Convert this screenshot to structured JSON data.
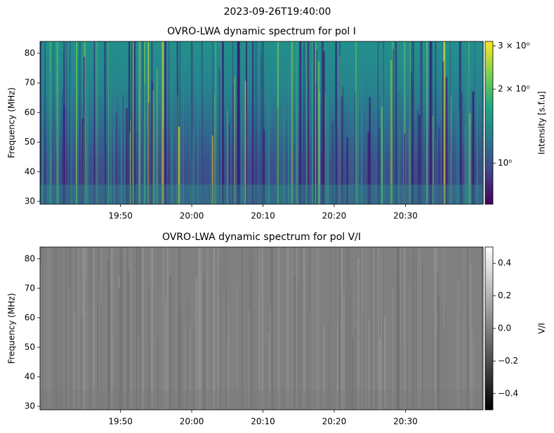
{
  "title": "2023-09-26T19:40:00",
  "chart_data": [
    {
      "type": "heatmap",
      "title": "OVRO-LWA dynamic spectrum for pol I",
      "y_label": "Frequency (MHz)",
      "xlim": [
        1178.7,
        1240.9
      ],
      "xticks": [
        {
          "value": 1190,
          "label": "19:50"
        },
        {
          "value": 1200,
          "label": "20:00"
        },
        {
          "value": 1210,
          "label": "20:10"
        },
        {
          "value": 1220,
          "label": "20:20"
        },
        {
          "value": 1230,
          "label": "20:30"
        }
      ],
      "ylim": [
        29.05,
        84
      ],
      "yticks": [
        30,
        40,
        50,
        60,
        70,
        80
      ],
      "colormap": "viridis",
      "colorbar": {
        "label": "Intensity [s.f.u]",
        "log": true,
        "lim": [
          0.68,
          3.13
        ],
        "ticks": [
          {
            "value": 1,
            "label": "10⁰"
          },
          {
            "value": 2,
            "label": "2 × 10⁰"
          },
          {
            "value": 3,
            "label": "3 × 10⁰"
          }
        ]
      }
    },
    {
      "type": "heatmap",
      "title": "OVRO-LWA dynamic spectrum for pol V/I",
      "y_label": "Frequency (MHz)",
      "xlim": [
        1178.7,
        1240.9
      ],
      "xticks": [
        {
          "value": 1190,
          "label": "19:50"
        },
        {
          "value": 1200,
          "label": "20:00"
        },
        {
          "value": 1210,
          "label": "20:10"
        },
        {
          "value": 1220,
          "label": "20:20"
        },
        {
          "value": 1230,
          "label": "20:30"
        }
      ],
      "ylim": [
        28.8,
        84
      ],
      "yticks": [
        30,
        40,
        50,
        60,
        70,
        80
      ],
      "colormap": "gray",
      "colorbar": {
        "label": "V/I",
        "log": false,
        "lim": [
          -0.5,
          0.5
        ],
        "ticks": [
          {
            "value": -0.4,
            "label": "−0.4"
          },
          {
            "value": -0.2,
            "label": "−0.2"
          },
          {
            "value": 0,
            "label": "0.0"
          },
          0.2,
          0.4
        ]
      }
    }
  ]
}
